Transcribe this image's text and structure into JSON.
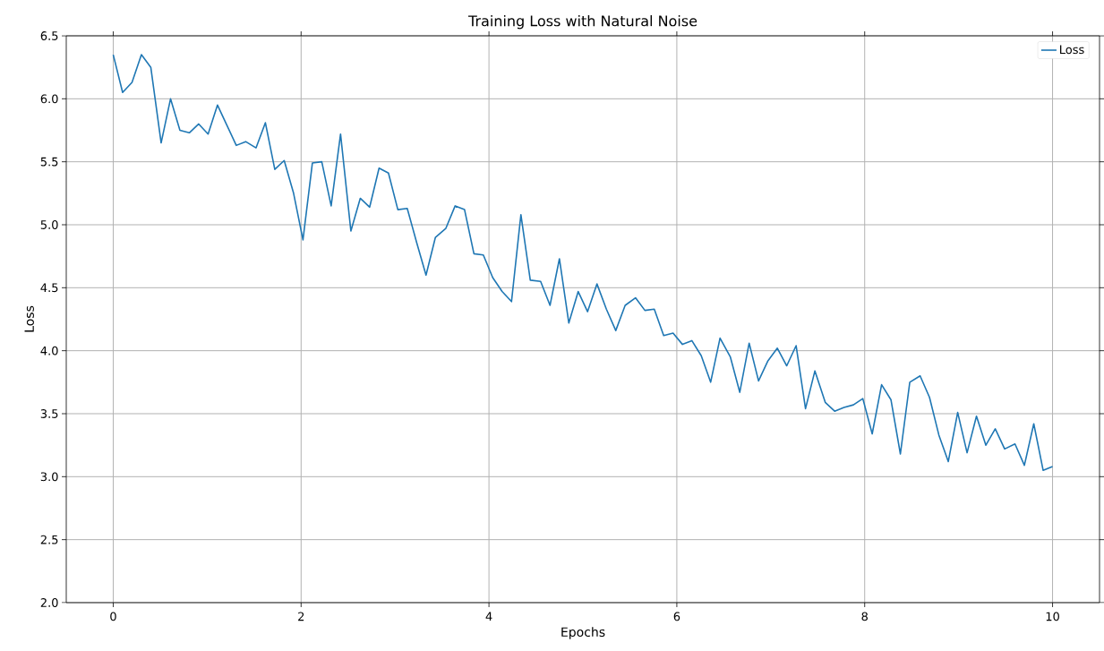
{
  "chart_data": {
    "type": "line",
    "title": "Training Loss with Natural Noise",
    "xlabel": "Epochs",
    "ylabel": "Loss",
    "x": [
      0,
      0.1,
      0.2,
      0.3,
      0.4,
      0.51,
      0.61,
      0.71,
      0.81,
      0.91,
      1.01,
      1.11,
      1.21,
      1.31,
      1.41,
      1.52,
      1.62,
      1.72,
      1.82,
      1.92,
      2.02,
      2.12,
      2.22,
      2.32,
      2.42,
      2.53,
      2.63,
      2.73,
      2.83,
      2.93,
      3.03,
      3.13,
      3.23,
      3.33,
      3.43,
      3.54,
      3.64,
      3.74,
      3.84,
      3.94,
      4.04,
      4.14,
      4.24,
      4.34,
      4.44,
      4.55,
      4.65,
      4.75,
      4.85,
      4.95,
      5.05,
      5.15,
      5.25,
      5.35,
      5.45,
      5.56,
      5.66,
      5.76,
      5.86,
      5.96,
      6.06,
      6.16,
      6.26,
      6.36,
      6.46,
      6.57,
      6.67,
      6.77,
      6.87,
      6.97,
      7.07,
      7.17,
      7.27,
      7.37,
      7.47,
      7.58,
      7.68,
      7.78,
      7.88,
      7.98,
      8.08,
      8.18,
      8.28,
      8.38,
      8.48,
      8.59,
      8.69,
      8.79,
      8.89,
      8.99,
      9.09,
      9.19,
      9.29,
      9.39,
      9.49,
      9.6,
      9.7,
      9.8,
      9.9,
      10
    ],
    "series": [
      {
        "name": "Loss",
        "color": "#1f77b4",
        "values": [
          6.35,
          6.05,
          6.13,
          6.35,
          6.25,
          5.65,
          6.0,
          5.75,
          5.73,
          5.8,
          5.72,
          5.95,
          5.79,
          5.63,
          5.66,
          5.61,
          5.81,
          5.44,
          5.51,
          5.25,
          4.88,
          5.49,
          5.5,
          5.15,
          5.72,
          4.95,
          5.21,
          5.14,
          5.45,
          5.41,
          5.12,
          5.13,
          4.86,
          4.6,
          4.9,
          4.97,
          5.15,
          5.12,
          4.77,
          4.76,
          4.58,
          4.47,
          4.39,
          5.08,
          4.56,
          4.55,
          4.36,
          4.73,
          4.22,
          4.47,
          4.31,
          4.53,
          4.33,
          4.16,
          4.36,
          4.42,
          4.32,
          4.33,
          4.12,
          4.14,
          4.05,
          4.08,
          3.96,
          3.75,
          4.1,
          3.95,
          3.67,
          4.06,
          3.76,
          3.92,
          4.02,
          3.88,
          4.04,
          3.54,
          3.84,
          3.59,
          3.52,
          3.55,
          3.57,
          3.62,
          3.34,
          3.73,
          3.61,
          3.18,
          3.75,
          3.8,
          3.63,
          3.33,
          3.12,
          3.51,
          3.19,
          3.48,
          3.25,
          3.38,
          3.22,
          3.26,
          3.09,
          3.42,
          3.05,
          3.08
        ]
      }
    ],
    "xlim": [
      -0.5,
      10.5
    ],
    "ylim": [
      2.0,
      6.5
    ],
    "xticks": [
      0,
      2,
      4,
      6,
      8,
      10
    ],
    "yticks": [
      {
        "value": 2.0,
        "label": "2.0"
      },
      {
        "value": 2.5,
        "label": "2.5"
      },
      {
        "value": 3.0,
        "label": "3.0"
      },
      {
        "value": 3.5,
        "label": "3.5"
      },
      {
        "value": 4.0,
        "label": "4.0"
      },
      {
        "value": 4.5,
        "label": "4.5"
      },
      {
        "value": 5.0,
        "label": "5.0"
      },
      {
        "value": 5.5,
        "label": "5.5"
      },
      {
        "value": 6.0,
        "label": "6.0"
      },
      {
        "value": 6.5,
        "label": "6.5"
      }
    ],
    "grid": true,
    "legend": "top right",
    "line_style": "solid",
    "marker": "none"
  }
}
